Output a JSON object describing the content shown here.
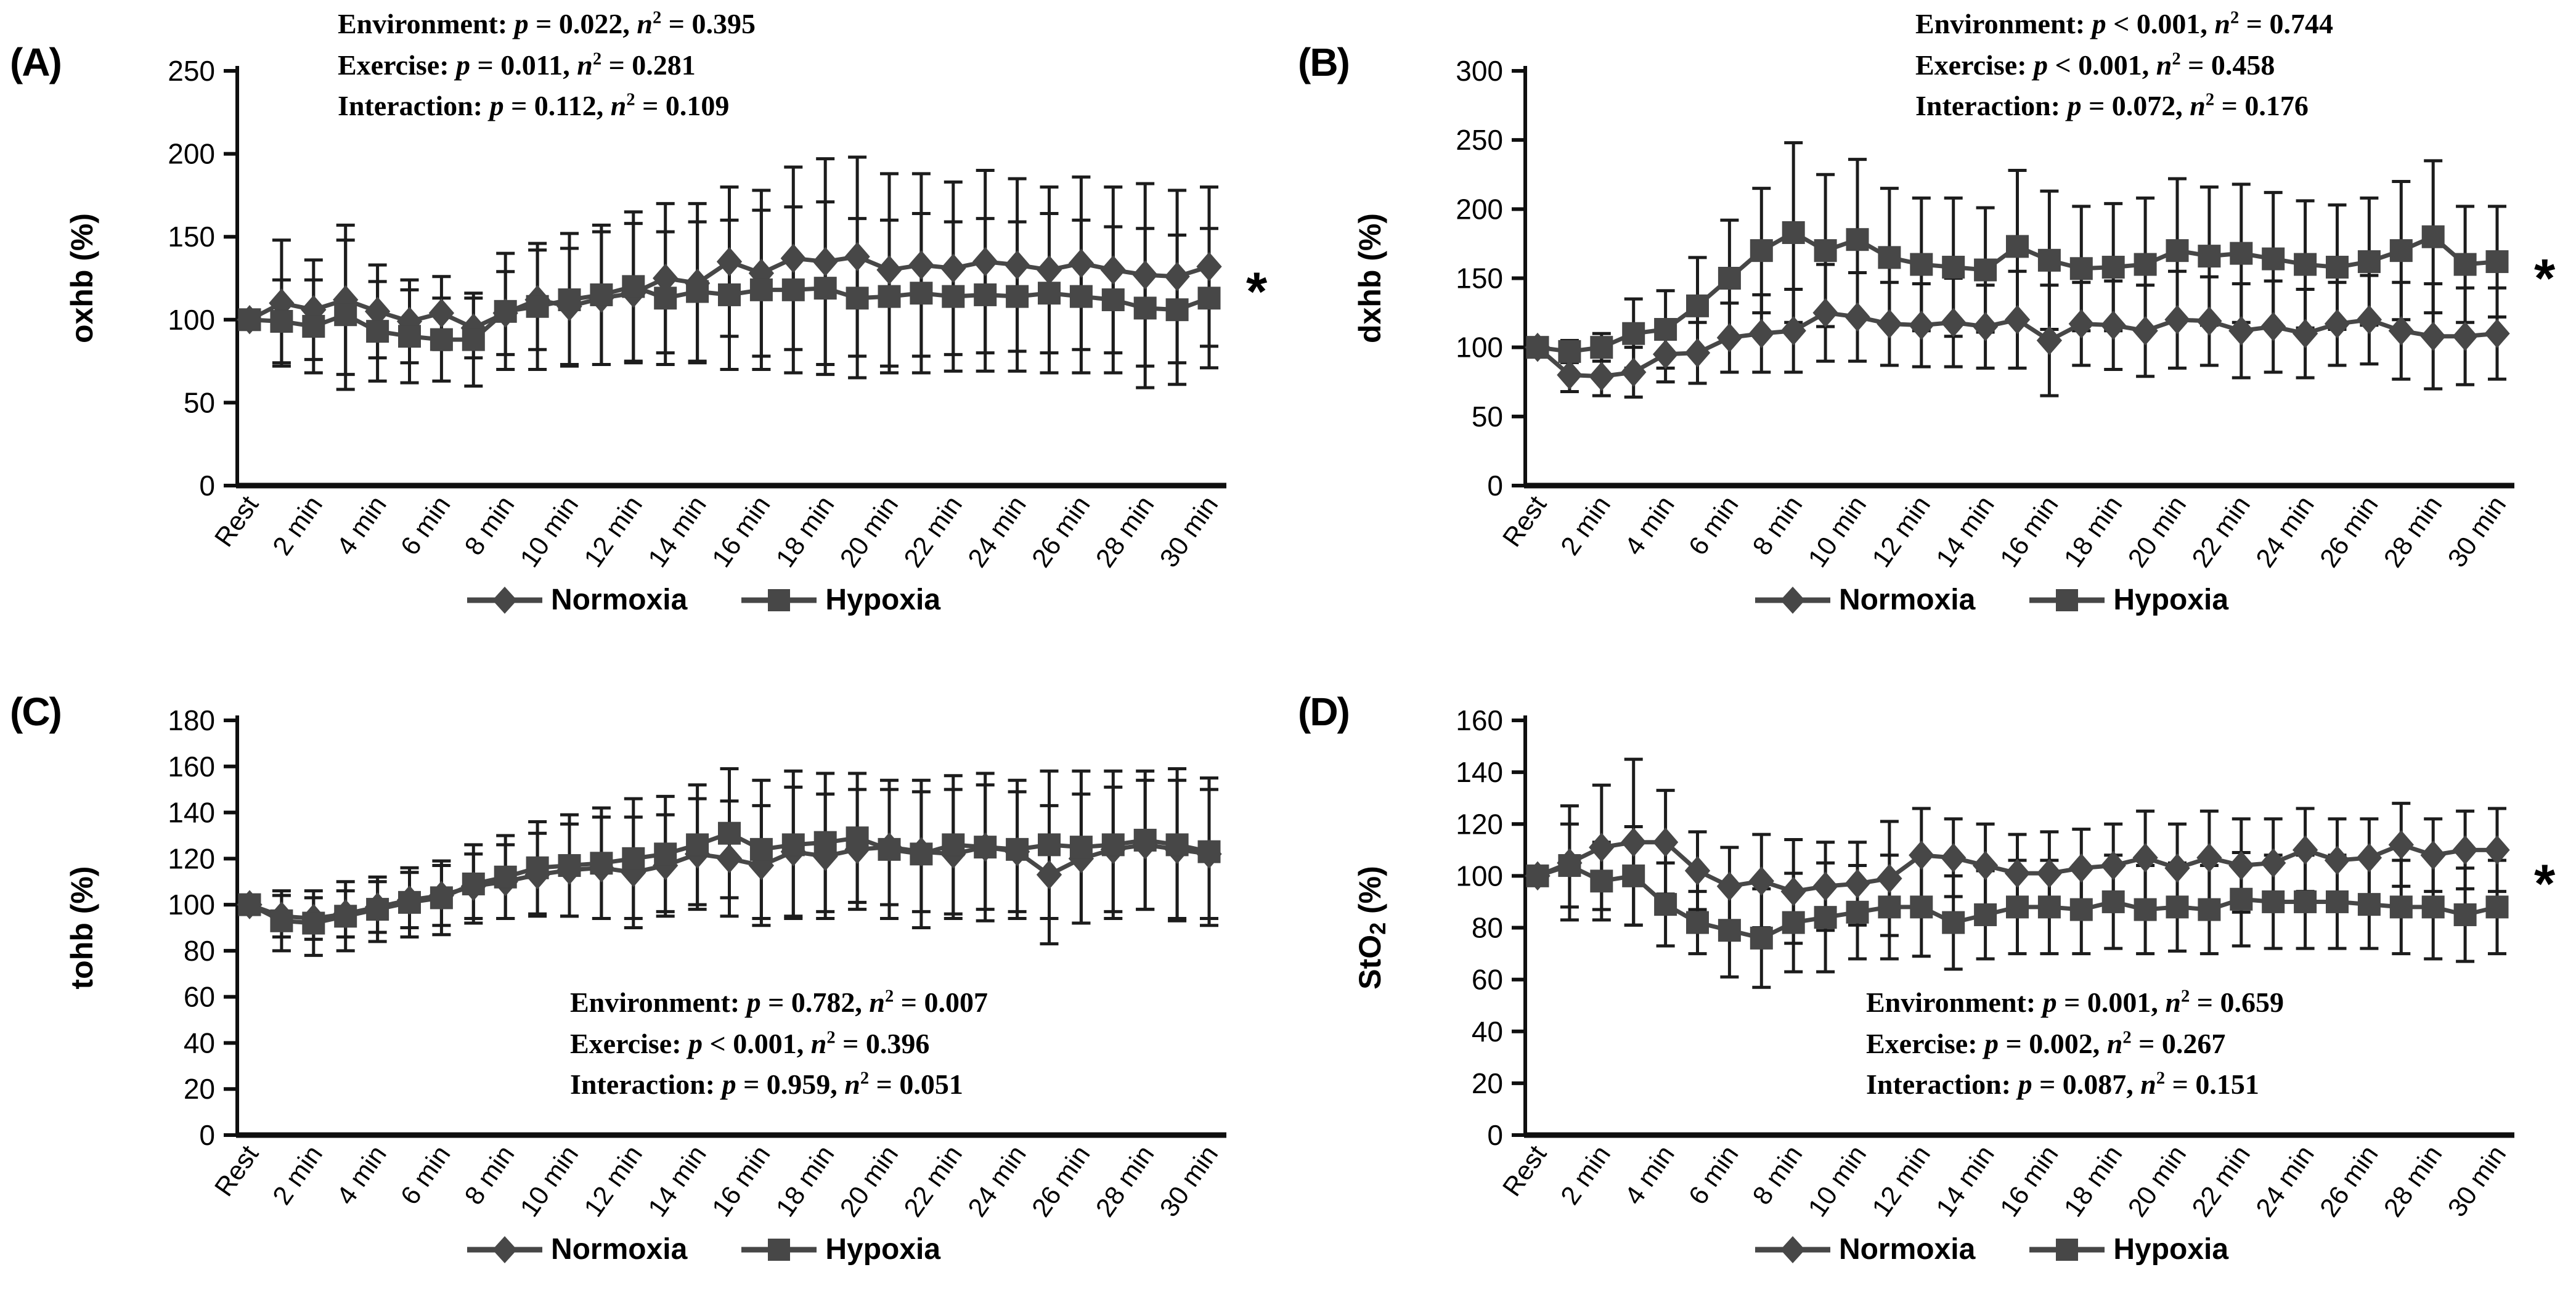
{
  "figure_legend": {
    "items": [
      {
        "label": "Normoxia",
        "marker": "diamond"
      },
      {
        "label": "Hypoxia",
        "marker": "square"
      }
    ]
  },
  "colors": {
    "series": "#474747",
    "error_bar": "#1c1c1c",
    "axis": "#0f0f0f",
    "text": "#000000"
  },
  "significance_symbol": "*",
  "chart_data": [
    {
      "panel_label": "(A)",
      "type": "line",
      "y_label": "oxhb (%)",
      "ylim": [
        0,
        250
      ],
      "y_step": 50,
      "grid": false,
      "legend_position": "bottom",
      "x_minutes": [
        0,
        1,
        2,
        3,
        4,
        5,
        6,
        7,
        8,
        9,
        10,
        11,
        12,
        13,
        14,
        15,
        16,
        17,
        18,
        19,
        20,
        21,
        22,
        23,
        24,
        25,
        26,
        27,
        28,
        29,
        30
      ],
      "x_tick_labels": [
        "Rest",
        "2 min",
        "4 min",
        "6 min",
        "8 min",
        "10 min",
        "12 min",
        "14 min",
        "16 min",
        "18 min",
        "20 min",
        "22 min",
        "24 min",
        "26 min",
        "28 min",
        "30 min"
      ],
      "stats": [
        {
          "label": "Environment",
          "p": "= 0.022",
          "eta2": "= 0.395"
        },
        {
          "label": "Exercise",
          "p": "= 0.011",
          "eta2": "= 0.281"
        },
        {
          "label": "Interaction",
          "p": "= 0.112",
          "eta2": "= 0.109"
        }
      ],
      "significance_marker_y": 117,
      "series": [
        {
          "name": "Normoxia",
          "marker": "diamond",
          "values": [
            100,
            110,
            106,
            112,
            105,
            99,
            104,
            95,
            104,
            112,
            108,
            113,
            116,
            125,
            122,
            135,
            128,
            137,
            135,
            138,
            130,
            133,
            131,
            135,
            133,
            130,
            134,
            130,
            127,
            126,
            132
          ],
          "error": [
            0,
            38,
            30,
            45,
            28,
            25,
            22,
            18,
            25,
            30,
            35,
            40,
            42,
            45,
            48,
            45,
            50,
            55,
            62,
            60,
            58,
            55,
            52,
            55,
            52,
            50,
            52,
            50,
            55,
            52,
            48
          ]
        },
        {
          "name": "Hypoxia",
          "marker": "square",
          "values": [
            100,
            99,
            96,
            103,
            93,
            90,
            88,
            88,
            105,
            108,
            112,
            115,
            120,
            113,
            117,
            115,
            118,
            118,
            119,
            113,
            114,
            116,
            114,
            115,
            114,
            116,
            114,
            112,
            107,
            106,
            113
          ],
          "error": [
            0,
            25,
            28,
            45,
            30,
            28,
            25,
            28,
            35,
            38,
            40,
            42,
            45,
            40,
            42,
            45,
            48,
            50,
            52,
            48,
            46,
            48,
            45,
            46,
            45,
            48,
            46,
            44,
            48,
            45,
            42
          ]
        }
      ]
    },
    {
      "panel_label": "(B)",
      "type": "line",
      "y_label": "dxhb (%)",
      "ylim": [
        0,
        300
      ],
      "y_step": 50,
      "grid": false,
      "legend_position": "bottom",
      "x_minutes": [
        0,
        1,
        2,
        3,
        4,
        5,
        6,
        7,
        8,
        9,
        10,
        11,
        12,
        13,
        14,
        15,
        16,
        17,
        18,
        19,
        20,
        21,
        22,
        23,
        24,
        25,
        26,
        27,
        28,
        29,
        30
      ],
      "x_tick_labels": [
        "Rest",
        "2 min",
        "4 min",
        "6 min",
        "8 min",
        "10 min",
        "12 min",
        "14 min",
        "16 min",
        "18 min",
        "20 min",
        "22 min",
        "24 min",
        "26 min",
        "28 min",
        "30 min"
      ],
      "stats": [
        {
          "label": "Environment",
          "p": "< 0.001",
          "eta2": "= 0.744"
        },
        {
          "label": "Exercise",
          "p": "< 0.001",
          "eta2": "= 0.458"
        },
        {
          "label": "Interaction",
          "p": "= 0.072",
          "eta2": "= 0.176"
        }
      ],
      "significance_marker_y": 150,
      "series": [
        {
          "name": "Normoxia",
          "marker": "diamond",
          "values": [
            100,
            80,
            79,
            82,
            95,
            96,
            107,
            110,
            112,
            125,
            122,
            117,
            116,
            118,
            115,
            120,
            105,
            117,
            116,
            112,
            120,
            119,
            112,
            115,
            110,
            117,
            120,
            112,
            108,
            108,
            110
          ],
          "error": [
            0,
            12,
            14,
            18,
            20,
            22,
            25,
            28,
            30,
            35,
            32,
            30,
            30,
            32,
            30,
            35,
            40,
            30,
            32,
            33,
            35,
            32,
            34,
            33,
            32,
            30,
            32,
            35,
            38,
            35,
            33
          ]
        },
        {
          "name": "Hypoxia",
          "marker": "square",
          "values": [
            100,
            97,
            100,
            110,
            113,
            130,
            150,
            170,
            183,
            170,
            178,
            165,
            160,
            158,
            156,
            173,
            163,
            157,
            158,
            160,
            170,
            166,
            168,
            164,
            160,
            158,
            162,
            170,
            180,
            160,
            162
          ],
          "error": [
            0,
            8,
            10,
            25,
            28,
            35,
            42,
            45,
            65,
            55,
            58,
            50,
            48,
            50,
            45,
            55,
            50,
            45,
            46,
            48,
            52,
            50,
            50,
            48,
            46,
            45,
            46,
            50,
            55,
            42,
            40
          ]
        }
      ]
    },
    {
      "panel_label": "(C)",
      "type": "line",
      "y_label": "tohb (%)",
      "ylim": [
        0,
        180
      ],
      "y_step": 20,
      "grid": false,
      "legend_position": "bottom",
      "x_minutes": [
        0,
        1,
        2,
        3,
        4,
        5,
        6,
        7,
        8,
        9,
        10,
        11,
        12,
        13,
        14,
        15,
        16,
        17,
        18,
        19,
        20,
        21,
        22,
        23,
        24,
        25,
        26,
        27,
        28,
        29,
        30
      ],
      "x_tick_labels": [
        "Rest",
        "2 min",
        "4 min",
        "6 min",
        "8 min",
        "10 min",
        "12 min",
        "14 min",
        "16 min",
        "18 min",
        "20 min",
        "22 min",
        "24 min",
        "26 min",
        "28 min",
        "30 min"
      ],
      "stats": [
        {
          "label": "Environment",
          "p": "= 0.782",
          "eta2": "= 0.007"
        },
        {
          "label": "Exercise",
          "p": "< 0.001",
          "eta2": "= 0.396"
        },
        {
          "label": "Interaction",
          "p": "= 0.959",
          "eta2": "= 0.051"
        }
      ],
      "significance_marker_y": null,
      "series": [
        {
          "name": "Normoxia",
          "marker": "diamond",
          "values": [
            100,
            95,
            94,
            96,
            99,
            102,
            104,
            108,
            110,
            113,
            115,
            116,
            114,
            117,
            122,
            120,
            117,
            123,
            121,
            124,
            125,
            123,
            122,
            125,
            123,
            113,
            120,
            124,
            126,
            124,
            122
          ],
          "error": [
            0,
            9,
            9,
            10,
            11,
            12,
            13,
            14,
            16,
            18,
            20,
            22,
            24,
            22,
            24,
            25,
            26,
            28,
            27,
            26,
            25,
            26,
            28,
            27,
            26,
            30,
            28,
            27,
            28,
            30,
            28
          ]
        },
        {
          "name": "Hypoxia",
          "marker": "square",
          "values": [
            100,
            93,
            92,
            95,
            98,
            101,
            103,
            109,
            112,
            116,
            117,
            118,
            120,
            122,
            126,
            131,
            124,
            126,
            127,
            129,
            124,
            122,
            126,
            125,
            124,
            126,
            125,
            126,
            128,
            126,
            123
          ],
          "error": [
            0,
            13,
            14,
            15,
            14,
            15,
            16,
            17,
            18,
            20,
            22,
            24,
            26,
            25,
            26,
            28,
            30,
            32,
            30,
            28,
            30,
            32,
            30,
            32,
            30,
            32,
            33,
            32,
            30,
            33,
            32
          ]
        }
      ]
    },
    {
      "panel_label": "(D)",
      "type": "line",
      "y_label": "StO2 (%)",
      "y_label_parts": [
        {
          "t": "StO"
        },
        {
          "t": "2",
          "sub": true
        },
        {
          "t": " (%)"
        }
      ],
      "ylim": [
        0,
        160
      ],
      "y_step": 20,
      "grid": false,
      "legend_position": "bottom",
      "x_minutes": [
        0,
        1,
        2,
        3,
        4,
        5,
        6,
        7,
        8,
        9,
        10,
        11,
        12,
        13,
        14,
        15,
        16,
        17,
        18,
        19,
        20,
        21,
        22,
        23,
        24,
        25,
        26,
        27,
        28,
        29,
        30
      ],
      "x_tick_labels": [
        "Rest",
        "2 min",
        "4 min",
        "6 min",
        "8 min",
        "10 min",
        "12 min",
        "14 min",
        "16 min",
        "18 min",
        "20 min",
        "22 min",
        "24 min",
        "26 min",
        "28 min",
        "30 min"
      ],
      "stats": [
        {
          "label": "Environment",
          "p": "= 0.001",
          "eta2": "= 0.659"
        },
        {
          "label": "Exercise",
          "p": "= 0.002",
          "eta2": "= 0.267"
        },
        {
          "label": "Interaction",
          "p": "= 0.087",
          "eta2": "= 0.151"
        }
      ],
      "significance_marker_y": 97,
      "series": [
        {
          "name": "Normoxia",
          "marker": "diamond",
          "values": [
            100,
            105,
            111,
            113,
            113,
            102,
            96,
            98,
            94,
            96,
            97,
            99,
            108,
            107,
            104,
            101,
            101,
            103,
            104,
            107,
            103,
            107,
            104,
            105,
            110,
            106,
            107,
            112,
            108,
            110,
            110
          ],
          "error": [
            0,
            22,
            24,
            32,
            20,
            15,
            15,
            18,
            20,
            17,
            16,
            22,
            18,
            15,
            16,
            15,
            16,
            15,
            16,
            18,
            17,
            18,
            18,
            17,
            16,
            16,
            15,
            16,
            14,
            15,
            16
          ]
        },
        {
          "name": "Hypoxia",
          "marker": "square",
          "values": [
            100,
            104,
            98,
            100,
            89,
            82,
            79,
            76,
            82,
            84,
            86,
            88,
            88,
            82,
            85,
            88,
            88,
            87,
            90,
            87,
            88,
            87,
            91,
            90,
            90,
            90,
            89,
            88,
            88,
            85,
            88
          ],
          "error": [
            0,
            16,
            15,
            19,
            16,
            12,
            18,
            19,
            19,
            21,
            18,
            20,
            19,
            18,
            17,
            18,
            18,
            17,
            18,
            17,
            17,
            17,
            18,
            18,
            18,
            18,
            17,
            18,
            20,
            18,
            18
          ]
        }
      ]
    }
  ]
}
